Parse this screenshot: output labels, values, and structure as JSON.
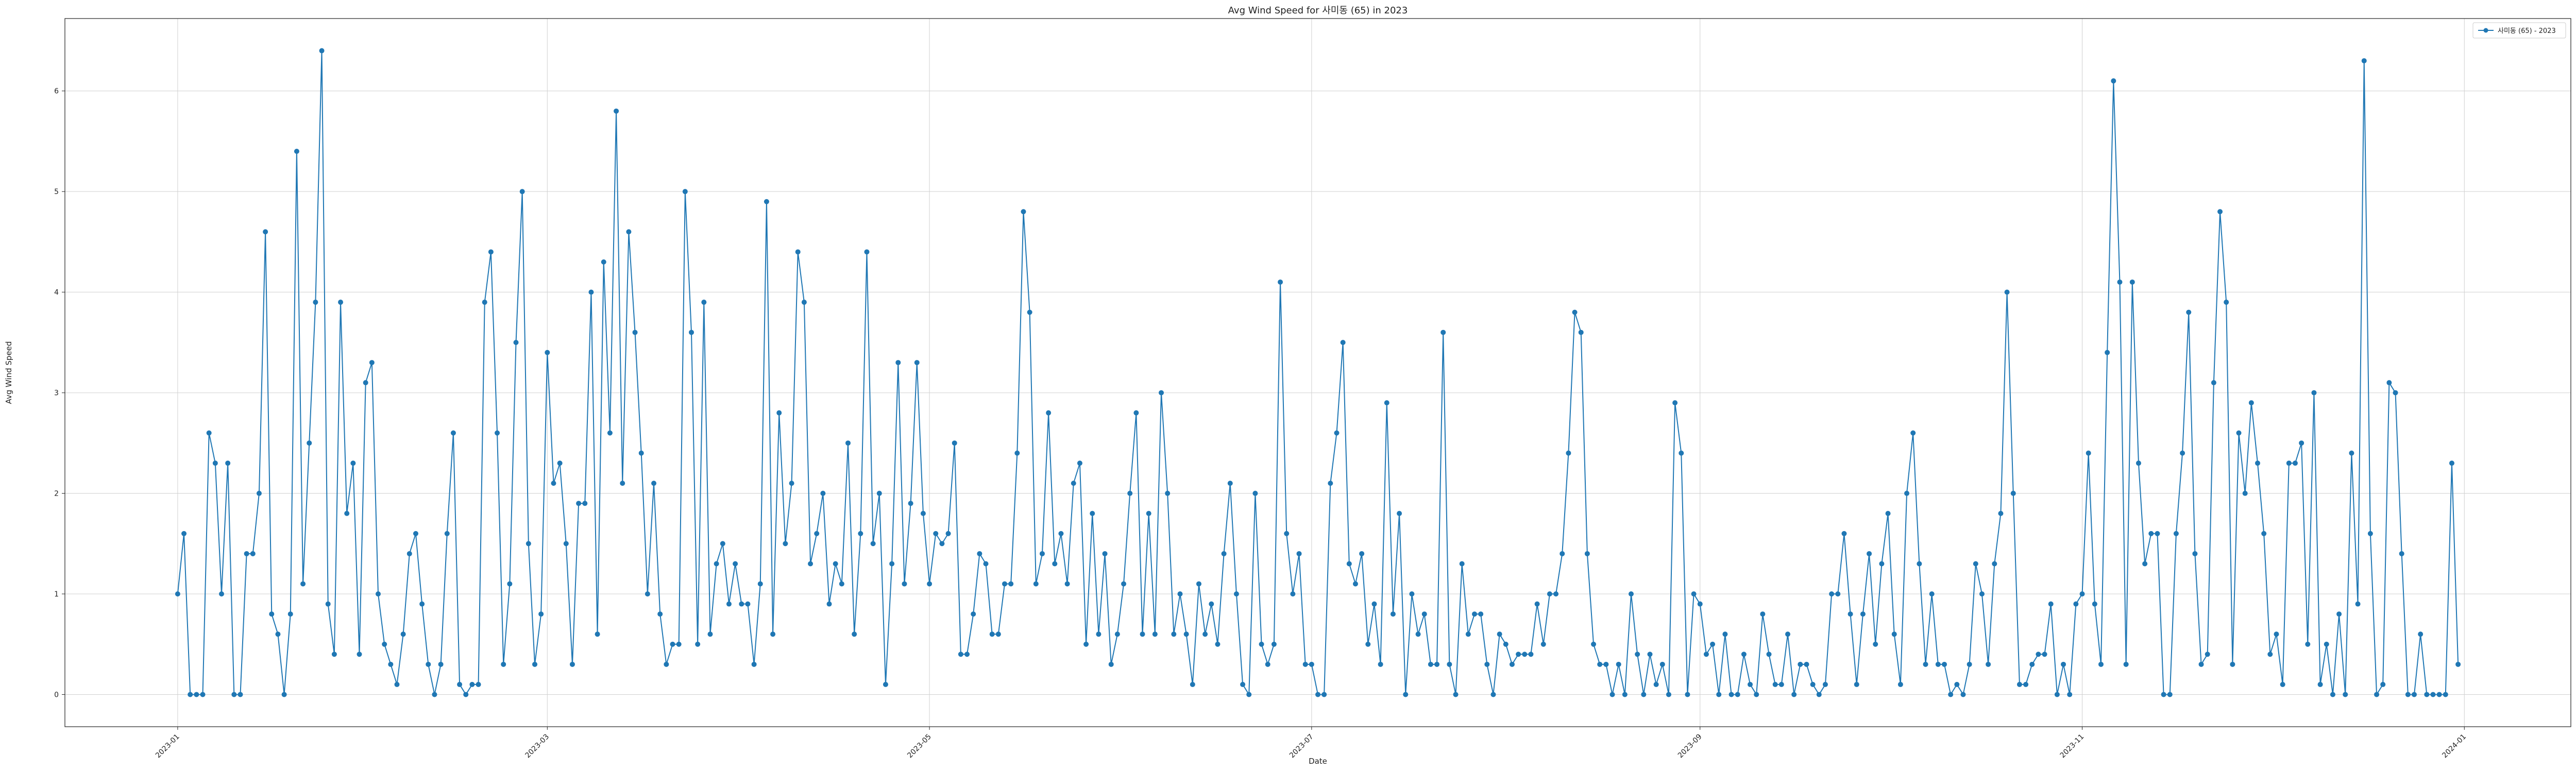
{
  "chart_data": {
    "type": "line",
    "title": "Avg Wind Speed for 사미동 (65) in 2023",
    "xlabel": "Date",
    "ylabel": "Avg Wind Speed",
    "x_start": "2023-01-01",
    "xlim": [
      "2022-12-14",
      "2024-01-18"
    ],
    "ylim": [
      -0.32,
      6.72
    ],
    "yticks": [
      0,
      1,
      2,
      3,
      4,
      5,
      6
    ],
    "xticks": [
      "2023-01",
      "2023-03",
      "2023-05",
      "2023-07",
      "2023-09",
      "2023-11",
      "2024-01"
    ],
    "grid": true,
    "legend": "top-right",
    "color": "#1f77b4",
    "series": [
      {
        "name": "사미동 (65) - 2023",
        "values": [
          1.0,
          1.6,
          0,
          0,
          0,
          2.6,
          2.3,
          1.0,
          2.3,
          0,
          0,
          1.4,
          1.4,
          2.0,
          4.6,
          0.8,
          0.6,
          0,
          0.8,
          5.4,
          1.1,
          2.5,
          3.9,
          6.4,
          0.9,
          0.4,
          3.9,
          1.8,
          2.3,
          0.4,
          3.1,
          3.3,
          1.0,
          0.5,
          0.3,
          0.1,
          0.6,
          1.4,
          1.6,
          0.9,
          0.3,
          0,
          0.3,
          1.6,
          2.6,
          0.1,
          0,
          0.1,
          0.1,
          3.9,
          4.4,
          2.6,
          0.3,
          1.1,
          3.5,
          5.0,
          1.5,
          0.3,
          0.8,
          3.4,
          2.1,
          2.3,
          1.5,
          0.3,
          1.9,
          1.9,
          4.0,
          0.6,
          4.3,
          2.6,
          5.8,
          2.1,
          4.6,
          3.6,
          2.4,
          1.0,
          2.1,
          0.8,
          0.3,
          0.5,
          0.5,
          5.0,
          3.6,
          0.5,
          3.9,
          0.6,
          1.3,
          1.5,
          0.9,
          1.3,
          0.9,
          0.9,
          0.3,
          1.1,
          4.9,
          0.6,
          2.8,
          1.5,
          2.1,
          4.4,
          3.9,
          1.3,
          1.6,
          2.0,
          0.9,
          1.3,
          1.1,
          2.5,
          0.6,
          1.6,
          4.4,
          1.5,
          2.0,
          0.1,
          1.3,
          3.3,
          1.1,
          1.9,
          3.3,
          1.8,
          1.1,
          1.6,
          1.5,
          1.6,
          2.5,
          0.4,
          0.4,
          0.8,
          1.4,
          1.3,
          0.6,
          0.6,
          1.1,
          1.1,
          2.4,
          4.8,
          3.8,
          1.1,
          1.4,
          2.8,
          1.3,
          1.6,
          1.1,
          2.1,
          2.3,
          0.5,
          1.8,
          0.6,
          1.4,
          0.3,
          0.6,
          1.1,
          2.0,
          2.8,
          0.6,
          1.8,
          0.6,
          3.0,
          2.0,
          0.6,
          1.0,
          0.6,
          0.1,
          1.1,
          0.6,
          0.9,
          0.5,
          1.4,
          2.1,
          1.0,
          0.1,
          0,
          2.0,
          0.5,
          0.3,
          0.5,
          4.1,
          1.6,
          1.0,
          1.4,
          0.3,
          0.3,
          0,
          0,
          2.1,
          2.6,
          3.5,
          1.3,
          1.1,
          1.4,
          0.5,
          0.9,
          0.3,
          2.9,
          0.8,
          1.8,
          0,
          1.0,
          0.6,
          0.8,
          0.3,
          0.3,
          3.6,
          0.3,
          0,
          1.3,
          0.6,
          0.8,
          0.8,
          0.3,
          0,
          0.6,
          0.5,
          0.3,
          0.4,
          0.4,
          0.4,
          0.9,
          0.5,
          1.0,
          1.0,
          1.4,
          2.4,
          3.8,
          3.6,
          1.4,
          0.5,
          0.3,
          0.3,
          0,
          0.3,
          0,
          1.0,
          0.4,
          0,
          0.4,
          0.1,
          0.3,
          0,
          2.9,
          2.4,
          0,
          1.0,
          0.9,
          0.4,
          0.5,
          0,
          0.6,
          0,
          0,
          0.4,
          0.1,
          0,
          0.8,
          0.4,
          0.1,
          0.1,
          0.6,
          0,
          0.3,
          0.3,
          0.1,
          0,
          0.1,
          1.0,
          1.0,
          1.6,
          0.8,
          0.1,
          0.8,
          1.4,
          0.5,
          1.3,
          1.8,
          0.6,
          0.1,
          2.0,
          2.6,
          1.3,
          0.3,
          1.0,
          0.3,
          0.3,
          0,
          0.1,
          0,
          0.3,
          1.3,
          1.0,
          0.3,
          1.3,
          1.8,
          4.0,
          2.0,
          0.1,
          0.1,
          0.3,
          0.4,
          0.4,
          0.9,
          0,
          0.3,
          0,
          0.9,
          1.0,
          2.4,
          0.9,
          0.3,
          3.4,
          6.1,
          4.1,
          0.3,
          4.1,
          2.3,
          1.3,
          1.6,
          1.6,
          0,
          0,
          1.6,
          2.4,
          3.8,
          1.4,
          0.3,
          0.4,
          3.1,
          4.8,
          3.9,
          0.3,
          2.6,
          2.0,
          2.9,
          2.3,
          1.6,
          0.4,
          0.6,
          0.1,
          2.3,
          2.3,
          2.5,
          0.5,
          3.0,
          0.1,
          0.5,
          0,
          0.8,
          0,
          2.4,
          0.9,
          6.3,
          1.6,
          0,
          0.1,
          3.1,
          3.0,
          1.4,
          0,
          0,
          0.6,
          0,
          0,
          0,
          0,
          2.3,
          0.3
        ]
      }
    ]
  }
}
